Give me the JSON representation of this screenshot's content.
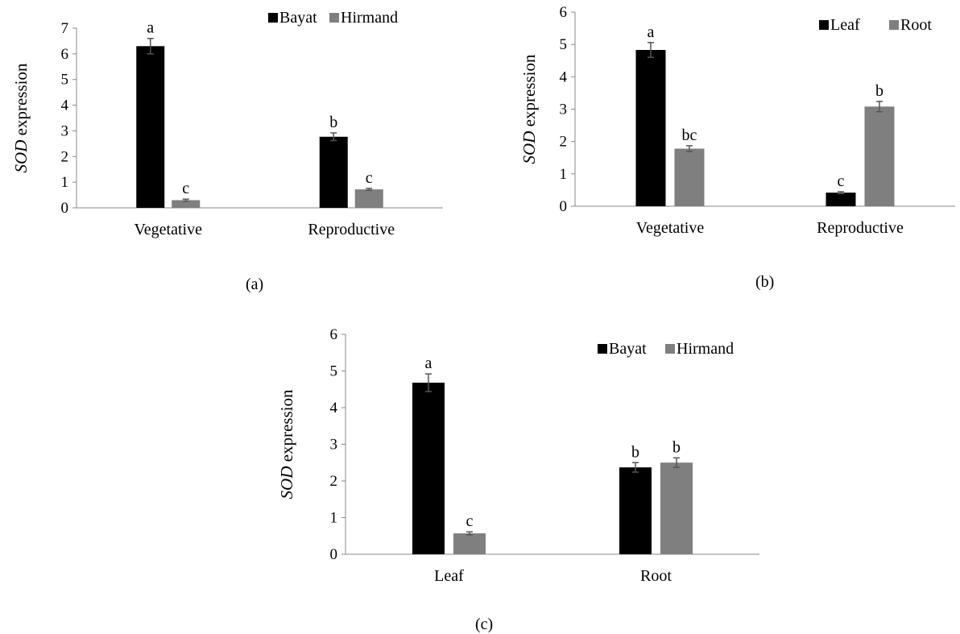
{
  "colors": {
    "series1": "#000000",
    "series2": "#7f7f7f",
    "axis": "#888888",
    "errorbar": "#555555"
  },
  "chart_data": [
    {
      "panel_label": "(a)",
      "type": "bar",
      "ylabel_italic": "SOD",
      "ylabel_rest": " expression",
      "ylim": [
        0,
        7
      ],
      "yticks": [
        "0",
        "1",
        "2",
        "3",
        "4",
        "5",
        "6",
        "7"
      ],
      "categories": [
        "Vegetative",
        "Reproductive"
      ],
      "legend_placement": "top-right",
      "series": [
        {
          "name": "Bayat",
          "values": [
            6.3,
            2.77
          ],
          "errors": [
            0.3,
            0.15
          ],
          "letters": [
            "a",
            "b"
          ]
        },
        {
          "name": "Hirmand",
          "values": [
            0.3,
            0.72
          ],
          "errors": [
            0.04,
            0.04
          ],
          "letters": [
            "c",
            "c"
          ]
        }
      ]
    },
    {
      "panel_label": "(b)",
      "type": "bar",
      "ylabel_italic": "SOD",
      "ylabel_rest": " expression",
      "ylim": [
        0,
        6
      ],
      "yticks": [
        "0",
        "1",
        "2",
        "3",
        "4",
        "5",
        "6"
      ],
      "categories": [
        "Vegetative",
        "Reproductive"
      ],
      "legend_placement": "top-right",
      "series": [
        {
          "name": "Leaf",
          "values": [
            4.83,
            0.42
          ],
          "errors": [
            0.23,
            0.03
          ],
          "letters": [
            "a",
            "c"
          ]
        },
        {
          "name": "Root",
          "values": [
            1.78,
            3.08
          ],
          "errors": [
            0.09,
            0.16
          ],
          "letters": [
            "bc",
            "b"
          ]
        }
      ]
    },
    {
      "panel_label": "(c)",
      "type": "bar",
      "ylabel_italic": "SOD",
      "ylabel_rest": " expression",
      "ylim": [
        0,
        6
      ],
      "yticks": [
        "0",
        "1",
        "2",
        "3",
        "4",
        "5",
        "6"
      ],
      "categories": [
        "Leaf",
        "Root"
      ],
      "legend_placement": "top-right",
      "series": [
        {
          "name": "Bayat",
          "values": [
            4.68,
            2.37
          ],
          "errors": [
            0.24,
            0.13
          ],
          "letters": [
            "a",
            "b"
          ]
        },
        {
          "name": "Hirmand",
          "values": [
            0.57,
            2.5
          ],
          "errors": [
            0.04,
            0.13
          ],
          "letters": [
            "c",
            "b"
          ]
        }
      ]
    }
  ]
}
